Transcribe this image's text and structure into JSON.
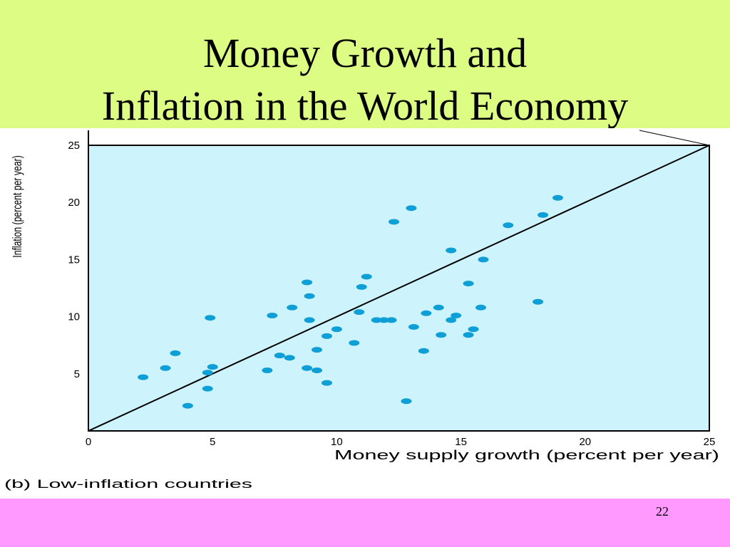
{
  "slide": {
    "title_line1": "Money Growth and",
    "title_line2": "Inflation in the World Economy",
    "page_number": "22",
    "caption": "(b) Low-inflation countries"
  },
  "colors": {
    "title_band": "#dcfc84",
    "footer_band": "#ff99ff",
    "plot_background": "#cdf3fd",
    "points": "#0e9fd7"
  },
  "chart_data": {
    "type": "scatter",
    "xlabel": "Money supply growth (percent per year)",
    "ylabel": "Inflation (percent per year)",
    "xlim": [
      0,
      25
    ],
    "ylim": [
      0,
      25
    ],
    "xticks": [
      0,
      5,
      10,
      15,
      20,
      25
    ],
    "yticks": [
      5,
      10,
      15,
      20,
      25
    ],
    "reference_line": {
      "x": [
        0,
        25
      ],
      "y": [
        0,
        25
      ]
    },
    "grid": false,
    "points": [
      {
        "x": 2.2,
        "y": 4.7
      },
      {
        "x": 3.1,
        "y": 5.5
      },
      {
        "x": 3.5,
        "y": 6.8
      },
      {
        "x": 4.0,
        "y": 2.2
      },
      {
        "x": 4.8,
        "y": 3.7
      },
      {
        "x": 4.8,
        "y": 5.1
      },
      {
        "x": 4.9,
        "y": 9.9
      },
      {
        "x": 5.0,
        "y": 5.6
      },
      {
        "x": 7.2,
        "y": 5.3
      },
      {
        "x": 7.4,
        "y": 10.1
      },
      {
        "x": 7.7,
        "y": 6.6
      },
      {
        "x": 8.1,
        "y": 6.4
      },
      {
        "x": 8.2,
        "y": 10.8
      },
      {
        "x": 8.8,
        "y": 13.0
      },
      {
        "x": 8.8,
        "y": 5.5
      },
      {
        "x": 8.9,
        "y": 9.7
      },
      {
        "x": 8.9,
        "y": 11.8
      },
      {
        "x": 9.2,
        "y": 7.1
      },
      {
        "x": 9.2,
        "y": 5.3
      },
      {
        "x": 9.6,
        "y": 4.2
      },
      {
        "x": 9.6,
        "y": 8.3
      },
      {
        "x": 10.0,
        "y": 8.9
      },
      {
        "x": 10.7,
        "y": 7.7
      },
      {
        "x": 10.9,
        "y": 10.4
      },
      {
        "x": 11.0,
        "y": 12.6
      },
      {
        "x": 11.2,
        "y": 13.5
      },
      {
        "x": 11.6,
        "y": 9.7
      },
      {
        "x": 11.9,
        "y": 9.7
      },
      {
        "x": 12.2,
        "y": 9.7
      },
      {
        "x": 12.3,
        "y": 18.3
      },
      {
        "x": 12.8,
        "y": 2.6
      },
      {
        "x": 13.0,
        "y": 19.5
      },
      {
        "x": 13.1,
        "y": 9.1
      },
      {
        "x": 13.5,
        "y": 7.0
      },
      {
        "x": 13.6,
        "y": 10.3
      },
      {
        "x": 14.1,
        "y": 10.8
      },
      {
        "x": 14.2,
        "y": 8.4
      },
      {
        "x": 14.6,
        "y": 9.7
      },
      {
        "x": 14.6,
        "y": 15.8
      },
      {
        "x": 14.8,
        "y": 10.1
      },
      {
        "x": 15.3,
        "y": 12.9
      },
      {
        "x": 15.3,
        "y": 8.4
      },
      {
        "x": 15.5,
        "y": 8.9
      },
      {
        "x": 15.8,
        "y": 10.8
      },
      {
        "x": 15.9,
        "y": 15.0
      },
      {
        "x": 16.9,
        "y": 18.0
      },
      {
        "x": 18.1,
        "y": 11.3
      },
      {
        "x": 18.3,
        "y": 18.9
      },
      {
        "x": 18.9,
        "y": 20.4
      }
    ]
  }
}
